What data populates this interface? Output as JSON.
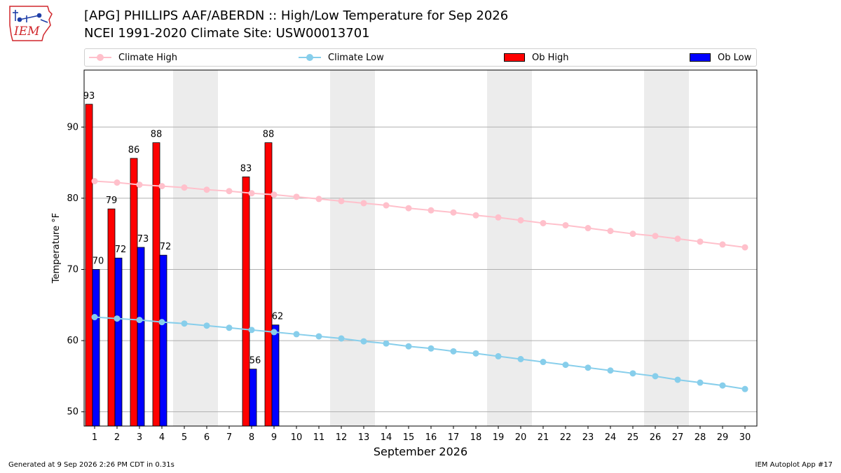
{
  "title": {
    "line1": "[APG] PHILLIPS AAF/ABERDN :: High/Low Temperature for Sep 2026",
    "line2": "NCEI 1991-2020 Climate Site: USW00013701"
  },
  "logo": {
    "text": "IEM"
  },
  "legend": {
    "climate_high": "Climate High",
    "climate_low": "Climate Low",
    "ob_high": "Ob High",
    "ob_low": "Ob Low"
  },
  "footer": {
    "left": "Generated at 9 Sep 2026 2:26 PM CDT in 0.31s",
    "right": "IEM Autoplot App #17"
  },
  "colors": {
    "climate_high": "#ffc0cb",
    "climate_low": "#87ceeb",
    "ob_high": "#ff0000",
    "ob_low": "#0000ff",
    "weekend_shade": "#ececec",
    "logo_red": "#d0262b",
    "logo_blue": "#1f3fa8"
  },
  "chart_data": {
    "type": "bar",
    "xlabel": "September 2026",
    "ylabel": "Temperature °F",
    "ylim": [
      48,
      98
    ],
    "yticks": [
      50,
      60,
      70,
      80,
      90
    ],
    "grid": "horizontal",
    "days": [
      1,
      2,
      3,
      4,
      5,
      6,
      7,
      8,
      9,
      10,
      11,
      12,
      13,
      14,
      15,
      16,
      17,
      18,
      19,
      20,
      21,
      22,
      23,
      24,
      25,
      26,
      27,
      28,
      29,
      30
    ],
    "shaded_days": [
      5,
      6,
      12,
      13,
      19,
      20,
      26,
      27
    ],
    "climate_high": [
      82.4,
      82.2,
      81.9,
      81.7,
      81.5,
      81.2,
      81.0,
      80.7,
      80.5,
      80.2,
      79.9,
      79.6,
      79.3,
      79.0,
      78.6,
      78.3,
      78.0,
      77.6,
      77.3,
      76.9,
      76.5,
      76.2,
      75.8,
      75.4,
      75.0,
      74.7,
      74.3,
      73.9,
      73.5,
      73.1
    ],
    "climate_low": [
      63.3,
      63.1,
      62.9,
      62.6,
      62.4,
      62.1,
      61.8,
      61.5,
      61.2,
      60.9,
      60.6,
      60.3,
      59.9,
      59.6,
      59.2,
      58.9,
      58.5,
      58.2,
      57.8,
      57.4,
      57.0,
      56.6,
      56.2,
      55.8,
      55.4,
      55.0,
      54.5,
      54.1,
      53.7,
      53.2
    ],
    "series": [
      {
        "name": "Ob High",
        "days": [
          1,
          2,
          3,
          4,
          8,
          9
        ],
        "values": [
          93.2,
          78.5,
          85.6,
          87.8,
          83.0,
          87.8
        ],
        "labels": [
          "93",
          "79",
          "86",
          "88",
          "83",
          "88"
        ]
      },
      {
        "name": "Ob Low",
        "days": [
          1,
          2,
          3,
          4,
          8,
          9
        ],
        "values": [
          70.0,
          71.6,
          73.1,
          72.0,
          56.0,
          62.2
        ],
        "labels": [
          "70",
          "72",
          "73",
          "72",
          "56",
          "62"
        ]
      }
    ]
  }
}
